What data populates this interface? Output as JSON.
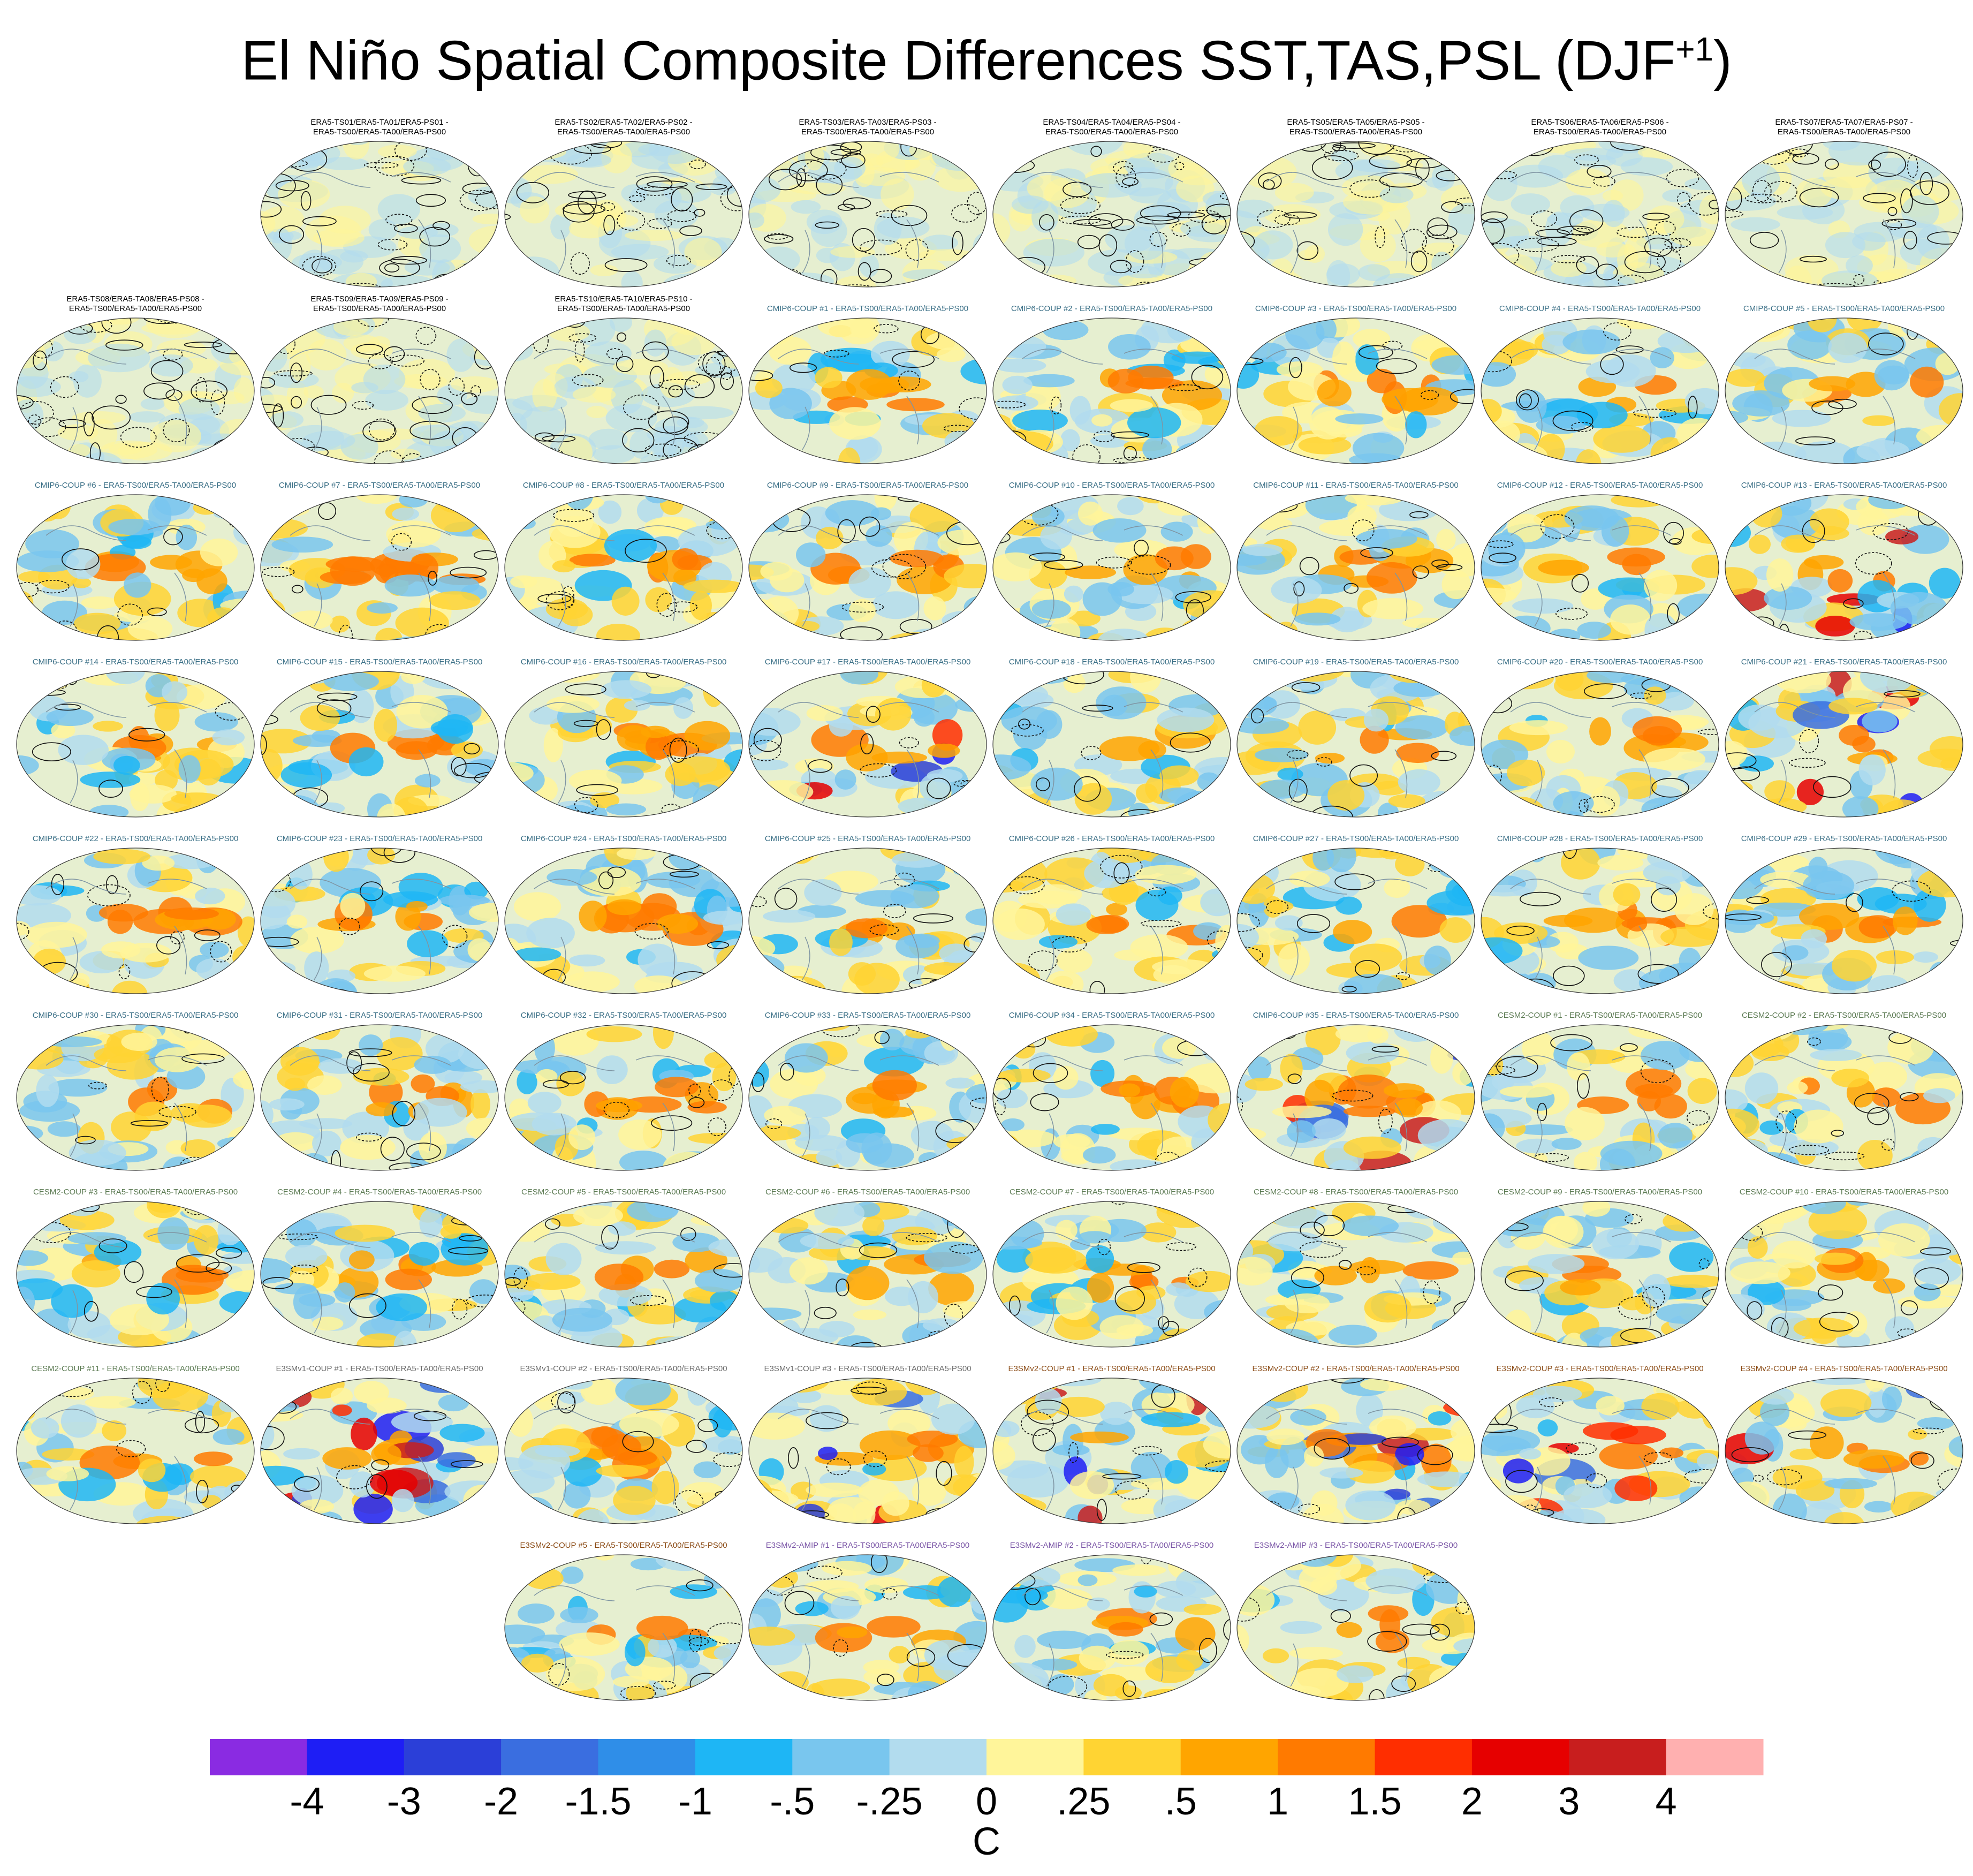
{
  "title": {
    "main": "El Niño Spatial Composite Differences SST,TAS,PSL (DJF",
    "sup": "+1",
    "close": ")"
  },
  "colors": {
    "map_background": "#e6efd0",
    "land_outline": "#7f95a3"
  },
  "panels": [
    {
      "row": 0,
      "col": 1,
      "line1": "ERA5-TS01/ERA5-TA01/ERA5-PS01 -",
      "line2": "ERA5-TS00/ERA5-TA00/ERA5-PS00",
      "group": "era",
      "intensity": 0.12
    },
    {
      "row": 0,
      "col": 2,
      "line1": "ERA5-TS02/ERA5-TA02/ERA5-PS02 -",
      "line2": "ERA5-TS00/ERA5-TA00/ERA5-PS00",
      "group": "era",
      "intensity": 0.2
    },
    {
      "row": 0,
      "col": 3,
      "line1": "ERA5-TS03/ERA5-TA03/ERA5-PS03 -",
      "line2": "ERA5-TS00/ERA5-TA00/ERA5-PS00",
      "group": "era",
      "intensity": 0.12
    },
    {
      "row": 0,
      "col": 4,
      "line1": "ERA5-TS04/ERA5-TA04/ERA5-PS04 -",
      "line2": "ERA5-TS00/ERA5-TA00/ERA5-PS00",
      "group": "era",
      "intensity": 0.12
    },
    {
      "row": 0,
      "col": 5,
      "line1": "ERA5-TS05/ERA5-TA05/ERA5-PS05 -",
      "line2": "ERA5-TS00/ERA5-TA00/ERA5-PS00",
      "group": "era",
      "intensity": 0.2
    },
    {
      "row": 0,
      "col": 6,
      "line1": "ERA5-TS06/ERA5-TA06/ERA5-PS06 -",
      "line2": "ERA5-TS00/ERA5-TA00/ERA5-PS00",
      "group": "era",
      "intensity": 0.12
    },
    {
      "row": 0,
      "col": 7,
      "line1": "ERA5-TS07/ERA5-TA07/ERA5-PS07 -",
      "line2": "ERA5-TS00/ERA5-TA00/ERA5-PS00",
      "group": "era",
      "intensity": 0.2
    },
    {
      "row": 1,
      "col": 0,
      "line1": "ERA5-TS08/ERA5-TA08/ERA5-PS08 -",
      "line2": "ERA5-TS00/ERA5-TA00/ERA5-PS00",
      "group": "era",
      "intensity": 0.12
    },
    {
      "row": 1,
      "col": 1,
      "line1": "ERA5-TS09/ERA5-TA09/ERA5-PS09 -",
      "line2": "ERA5-TS00/ERA5-TA00/ERA5-PS00",
      "group": "era",
      "intensity": 0.12
    },
    {
      "row": 1,
      "col": 2,
      "line1": "ERA5-TS10/ERA5-TA10/ERA5-PS10 -",
      "line2": "ERA5-TS00/ERA5-TA00/ERA5-PS00",
      "group": "era",
      "intensity": 0.12
    },
    {
      "row": 1,
      "col": 3,
      "line1": "CMIP6-COUP  #1 - ERA5-TS00/ERA5-TA00/ERA5-PS00",
      "group": "cmip6",
      "intensity": 0.8
    },
    {
      "row": 1,
      "col": 4,
      "line1": "CMIP6-COUP  #2 - ERA5-TS00/ERA5-TA00/ERA5-PS00",
      "group": "cmip6",
      "intensity": 0.8
    },
    {
      "row": 1,
      "col": 5,
      "line1": "CMIP6-COUP  #3 - ERA5-TS00/ERA5-TA00/ERA5-PS00",
      "group": "cmip6",
      "intensity": 0.8
    },
    {
      "row": 1,
      "col": 6,
      "line1": "CMIP6-COUP  #4 - ERA5-TS00/ERA5-TA00/ERA5-PS00",
      "group": "cmip6",
      "intensity": 0.8
    },
    {
      "row": 1,
      "col": 7,
      "line1": "CMIP6-COUP  #5 - ERA5-TS00/ERA5-TA00/ERA5-PS00",
      "group": "cmip6",
      "intensity": 0.8
    },
    {
      "row": 2,
      "col": 0,
      "line1": "CMIP6-COUP  #6 - ERA5-TS00/ERA5-TA00/ERA5-PS00",
      "group": "cmip6",
      "intensity": 0.85
    },
    {
      "row": 2,
      "col": 1,
      "line1": "CMIP6-COUP  #7 - ERA5-TS00/ERA5-TA00/ERA5-PS00",
      "group": "cmip6",
      "intensity": 0.85
    },
    {
      "row": 2,
      "col": 2,
      "line1": "CMIP6-COUP  #8 - ERA5-TS00/ERA5-TA00/ERA5-PS00",
      "group": "cmip6",
      "intensity": 0.85
    },
    {
      "row": 2,
      "col": 3,
      "line1": "CMIP6-COUP  #9 - ERA5-TS00/ERA5-TA00/ERA5-PS00",
      "group": "cmip6",
      "intensity": 0.85
    },
    {
      "row": 2,
      "col": 4,
      "line1": "CMIP6-COUP  #10 - ERA5-TS00/ERA5-TA00/ERA5-PS00",
      "group": "cmip6",
      "intensity": 0.85
    },
    {
      "row": 2,
      "col": 5,
      "line1": "CMIP6-COUP  #11 - ERA5-TS00/ERA5-TA00/ERA5-PS00",
      "group": "cmip6",
      "intensity": 0.85
    },
    {
      "row": 2,
      "col": 6,
      "line1": "CMIP6-COUP  #12 - ERA5-TS00/ERA5-TA00/ERA5-PS00",
      "group": "cmip6",
      "intensity": 0.85
    },
    {
      "row": 2,
      "col": 7,
      "line1": "CMIP6-COUP  #13 - ERA5-TS00/ERA5-TA00/ERA5-PS00",
      "group": "cmip6",
      "intensity": 0.9
    },
    {
      "row": 3,
      "col": 0,
      "line1": "CMIP6-COUP  #14 - ERA5-TS00/ERA5-TA00/ERA5-PS00",
      "group": "cmip6",
      "intensity": 0.85
    },
    {
      "row": 3,
      "col": 1,
      "line1": "CMIP6-COUP  #15 - ERA5-TS00/ERA5-TA00/ERA5-PS00",
      "group": "cmip6",
      "intensity": 0.85
    },
    {
      "row": 3,
      "col": 2,
      "line1": "CMIP6-COUP  #16 - ERA5-TS00/ERA5-TA00/ERA5-PS00",
      "group": "cmip6",
      "intensity": 0.85
    },
    {
      "row": 3,
      "col": 3,
      "line1": "CMIP6-COUP  #17 - ERA5-TS00/ERA5-TA00/ERA5-PS00",
      "group": "cmip6",
      "intensity": 0.9
    },
    {
      "row": 3,
      "col": 4,
      "line1": "CMIP6-COUP  #18 - ERA5-TS00/ERA5-TA00/ERA5-PS00",
      "group": "cmip6",
      "intensity": 0.85
    },
    {
      "row": 3,
      "col": 5,
      "line1": "CMIP6-COUP  #19 - ERA5-TS00/ERA5-TA00/ERA5-PS00",
      "group": "cmip6",
      "intensity": 0.85
    },
    {
      "row": 3,
      "col": 6,
      "line1": "CMIP6-COUP  #20 - ERA5-TS00/ERA5-TA00/ERA5-PS00",
      "group": "cmip6",
      "intensity": 0.85
    },
    {
      "row": 3,
      "col": 7,
      "line1": "CMIP6-COUP  #21 - ERA5-TS00/ERA5-TA00/ERA5-PS00",
      "group": "cmip6",
      "intensity": 0.9
    },
    {
      "row": 4,
      "col": 0,
      "line1": "CMIP6-COUP  #22 - ERA5-TS00/ERA5-TA00/ERA5-PS00",
      "group": "cmip6",
      "intensity": 0.85
    },
    {
      "row": 4,
      "col": 1,
      "line1": "CMIP6-COUP  #23 - ERA5-TS00/ERA5-TA00/ERA5-PS00",
      "group": "cmip6",
      "intensity": 0.85
    },
    {
      "row": 4,
      "col": 2,
      "line1": "CMIP6-COUP  #24 - ERA5-TS00/ERA5-TA00/ERA5-PS00",
      "group": "cmip6",
      "intensity": 0.85
    },
    {
      "row": 4,
      "col": 3,
      "line1": "CMIP6-COUP  #25 - ERA5-TS00/ERA5-TA00/ERA5-PS00",
      "group": "cmip6",
      "intensity": 0.85
    },
    {
      "row": 4,
      "col": 4,
      "line1": "CMIP6-COUP  #26 - ERA5-TS00/ERA5-TA00/ERA5-PS00",
      "group": "cmip6",
      "intensity": 0.85
    },
    {
      "row": 4,
      "col": 5,
      "line1": "CMIP6-COUP  #27 - ERA5-TS00/ERA5-TA00/ERA5-PS00",
      "group": "cmip6",
      "intensity": 0.85
    },
    {
      "row": 4,
      "col": 6,
      "line1": "CMIP6-COUP  #28 - ERA5-TS00/ERA5-TA00/ERA5-PS00",
      "group": "cmip6",
      "intensity": 0.85
    },
    {
      "row": 4,
      "col": 7,
      "line1": "CMIP6-COUP  #29 - ERA5-TS00/ERA5-TA00/ERA5-PS00",
      "group": "cmip6",
      "intensity": 0.85
    },
    {
      "row": 5,
      "col": 0,
      "line1": "CMIP6-COUP  #30 - ERA5-TS00/ERA5-TA00/ERA5-PS00",
      "group": "cmip6",
      "intensity": 0.85
    },
    {
      "row": 5,
      "col": 1,
      "line1": "CMIP6-COUP  #31 - ERA5-TS00/ERA5-TA00/ERA5-PS00",
      "group": "cmip6",
      "intensity": 0.85
    },
    {
      "row": 5,
      "col": 2,
      "line1": "CMIP6-COUP  #32 - ERA5-TS00/ERA5-TA00/ERA5-PS00",
      "group": "cmip6",
      "intensity": 0.85
    },
    {
      "row": 5,
      "col": 3,
      "line1": "CMIP6-COUP  #33 - ERA5-TS00/ERA5-TA00/ERA5-PS00",
      "group": "cmip6",
      "intensity": 0.85
    },
    {
      "row": 5,
      "col": 4,
      "line1": "CMIP6-COUP  #34 - ERA5-TS00/ERA5-TA00/ERA5-PS00",
      "group": "cmip6",
      "intensity": 0.85
    },
    {
      "row": 5,
      "col": 5,
      "line1": "CMIP6-COUP  #35 - ERA5-TS00/ERA5-TA00/ERA5-PS00",
      "group": "cmip6",
      "intensity": 0.9
    },
    {
      "row": 5,
      "col": 6,
      "line1": "CESM2-COUP  #1 - ERA5-TS00/ERA5-TA00/ERA5-PS00",
      "group": "cesm2",
      "intensity": 0.85
    },
    {
      "row": 5,
      "col": 7,
      "line1": "CESM2-COUP  #2 - ERA5-TS00/ERA5-TA00/ERA5-PS00",
      "group": "cesm2",
      "intensity": 0.85
    },
    {
      "row": 6,
      "col": 0,
      "line1": "CESM2-COUP  #3 - ERA5-TS00/ERA5-TA00/ERA5-PS00",
      "group": "cesm2",
      "intensity": 0.85
    },
    {
      "row": 6,
      "col": 1,
      "line1": "CESM2-COUP  #4 - ERA5-TS00/ERA5-TA00/ERA5-PS00",
      "group": "cesm2",
      "intensity": 0.85
    },
    {
      "row": 6,
      "col": 2,
      "line1": "CESM2-COUP  #5 - ERA5-TS00/ERA5-TA00/ERA5-PS00",
      "group": "cesm2",
      "intensity": 0.85
    },
    {
      "row": 6,
      "col": 3,
      "line1": "CESM2-COUP  #6 - ERA5-TS00/ERA5-TA00/ERA5-PS00",
      "group": "cesm2",
      "intensity": 0.85
    },
    {
      "row": 6,
      "col": 4,
      "line1": "CESM2-COUP  #7 - ERA5-TS00/ERA5-TA00/ERA5-PS00",
      "group": "cesm2",
      "intensity": 0.85
    },
    {
      "row": 6,
      "col": 5,
      "line1": "CESM2-COUP  #8 - ERA5-TS00/ERA5-TA00/ERA5-PS00",
      "group": "cesm2",
      "intensity": 0.85
    },
    {
      "row": 6,
      "col": 6,
      "line1": "CESM2-COUP  #9 - ERA5-TS00/ERA5-TA00/ERA5-PS00",
      "group": "cesm2",
      "intensity": 0.85
    },
    {
      "row": 6,
      "col": 7,
      "line1": "CESM2-COUP  #10 - ERA5-TS00/ERA5-TA00/ERA5-PS00",
      "group": "cesm2",
      "intensity": 0.85
    },
    {
      "row": 7,
      "col": 0,
      "line1": "CESM2-COUP  #11 - ERA5-TS00/ERA5-TA00/ERA5-PS00",
      "group": "cesm2",
      "intensity": 0.85
    },
    {
      "row": 7,
      "col": 1,
      "line1": "E3SMv1-COUP #1 - ERA5-TS00/ERA5-TA00/ERA5-PS00",
      "group": "e3smv1",
      "intensity": 0.9
    },
    {
      "row": 7,
      "col": 2,
      "line1": "E3SMv1-COUP #2 - ERA5-TS00/ERA5-TA00/ERA5-PS00",
      "group": "e3smv1",
      "intensity": 0.85
    },
    {
      "row": 7,
      "col": 3,
      "line1": "E3SMv1-COUP #3 - ERA5-TS00/ERA5-TA00/ERA5-PS00",
      "group": "e3smv1",
      "intensity": 0.95
    },
    {
      "row": 7,
      "col": 4,
      "line1": "E3SMv2-COUP #1 - ERA5-TS00/ERA5-TA00/ERA5-PS00",
      "group": "e3smv2c",
      "intensity": 0.9
    },
    {
      "row": 7,
      "col": 5,
      "line1": "E3SMv2-COUP #2 - ERA5-TS00/ERA5-TA00/ERA5-PS00",
      "group": "e3smv2c",
      "intensity": 0.9
    },
    {
      "row": 7,
      "col": 6,
      "line1": "E3SMv2-COUP #3 - ERA5-TS00/ERA5-TA00/ERA5-PS00",
      "group": "e3smv2c",
      "intensity": 0.9
    },
    {
      "row": 7,
      "col": 7,
      "line1": "E3SMv2-COUP #4 - ERA5-TS00/ERA5-TA00/ERA5-PS00",
      "group": "e3smv2c",
      "intensity": 0.9
    },
    {
      "row": 8,
      "col": 2,
      "line1": "E3SMv2-COUP #5 - ERA5-TS00/ERA5-TA00/ERA5-PS00",
      "group": "e3smv2c",
      "intensity": 0.85
    },
    {
      "row": 8,
      "col": 3,
      "line1": "E3SMv2-AMIP #1 - ERA5-TS00/ERA5-TA00/ERA5-PS00",
      "group": "e3smv2a",
      "intensity": 0.7
    },
    {
      "row": 8,
      "col": 4,
      "line1": "E3SMv2-AMIP #2 - ERA5-TS00/ERA5-TA00/ERA5-PS00",
      "group": "e3smv2a",
      "intensity": 0.7
    },
    {
      "row": 8,
      "col": 5,
      "line1": "E3SMv2-AMIP #3 - ERA5-TS00/ERA5-TA00/ERA5-PS00",
      "group": "e3smv2a",
      "intensity": 0.7
    }
  ],
  "chart_data": {
    "type": "heatmap",
    "title": "El Niño Spatial Composite Differences SST,TAS,PSL (DJF+1)",
    "description_units": "C",
    "colorbar": {
      "boundaries": [
        "-4",
        "-3",
        "-2",
        "-1.5",
        "-1",
        "-.5",
        "-.25",
        "0",
        ".25",
        ".5",
        "1",
        "1.5",
        "2",
        "3",
        "4"
      ],
      "colors": [
        "#8a2be2",
        "#1e1ef5",
        "#2b3fd8",
        "#3a6ee0",
        "#2f8ee8",
        "#1eb6f5",
        "#79c6ee",
        "#b2dcee",
        "#fff59a",
        "#ffd433",
        "#ffa500",
        "#ff7a00",
        "#ff2e00",
        "#e60000",
        "#c81e1e",
        "#ffb0b0"
      ],
      "unit": "C"
    }
  }
}
